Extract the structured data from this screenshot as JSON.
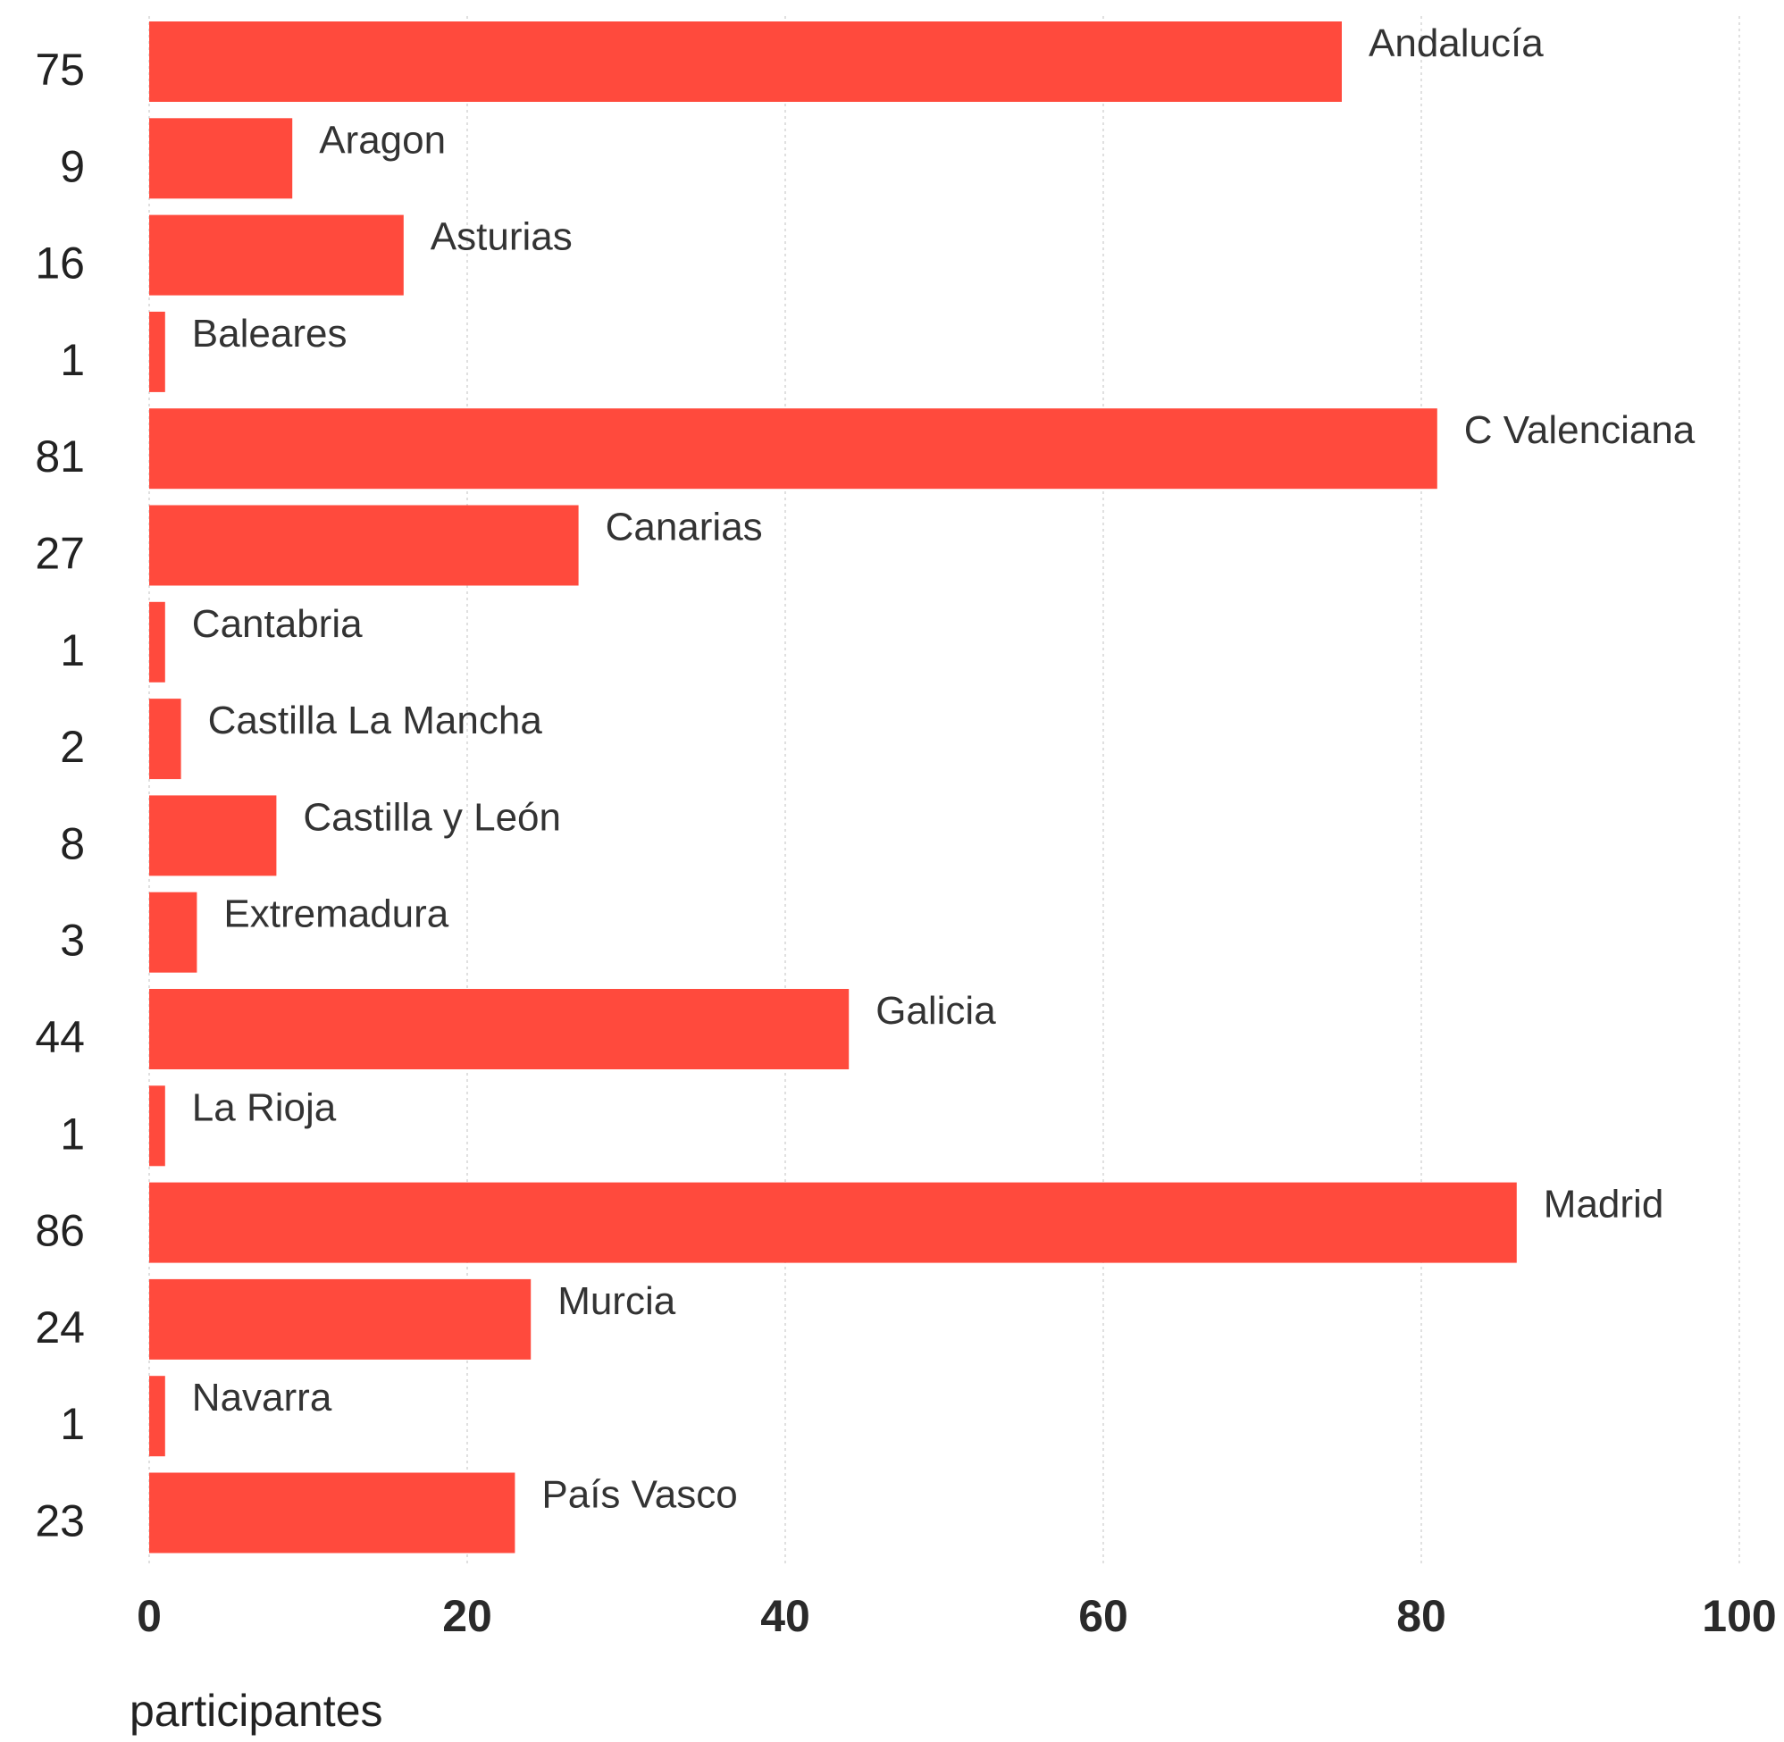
{
  "chart_data": {
    "type": "bar",
    "orientation": "horizontal",
    "categories": [
      "Andalucía",
      "Aragon",
      "Asturias",
      "Baleares",
      "C Valenciana",
      "Canarias",
      "Cantabria",
      "Castilla La Mancha",
      "Castilla y León",
      "Extremadura",
      "Galicia",
      "La Rioja",
      "Madrid",
      "Murcia",
      "Navarra",
      "País Vasco"
    ],
    "values": [
      75,
      9,
      16,
      1,
      81,
      27,
      1,
      2,
      8,
      3,
      44,
      1,
      86,
      24,
      1,
      23
    ],
    "value_labels": [
      "75",
      "9",
      "16",
      "1",
      "81",
      "27",
      "1",
      "2",
      "8",
      "3",
      "44",
      "1",
      "86",
      "24",
      "1",
      "23"
    ],
    "xlabel": "participantes",
    "ylabel": "",
    "xlim": [
      0,
      100
    ],
    "x_ticks": [
      0,
      20,
      40,
      60,
      80,
      100
    ],
    "x_tick_labels": [
      "0",
      "20",
      "40",
      "60",
      "80",
      "100"
    ],
    "grid": "vertical dotted",
    "legend": "none",
    "bar_color": "#ff4a3d"
  }
}
